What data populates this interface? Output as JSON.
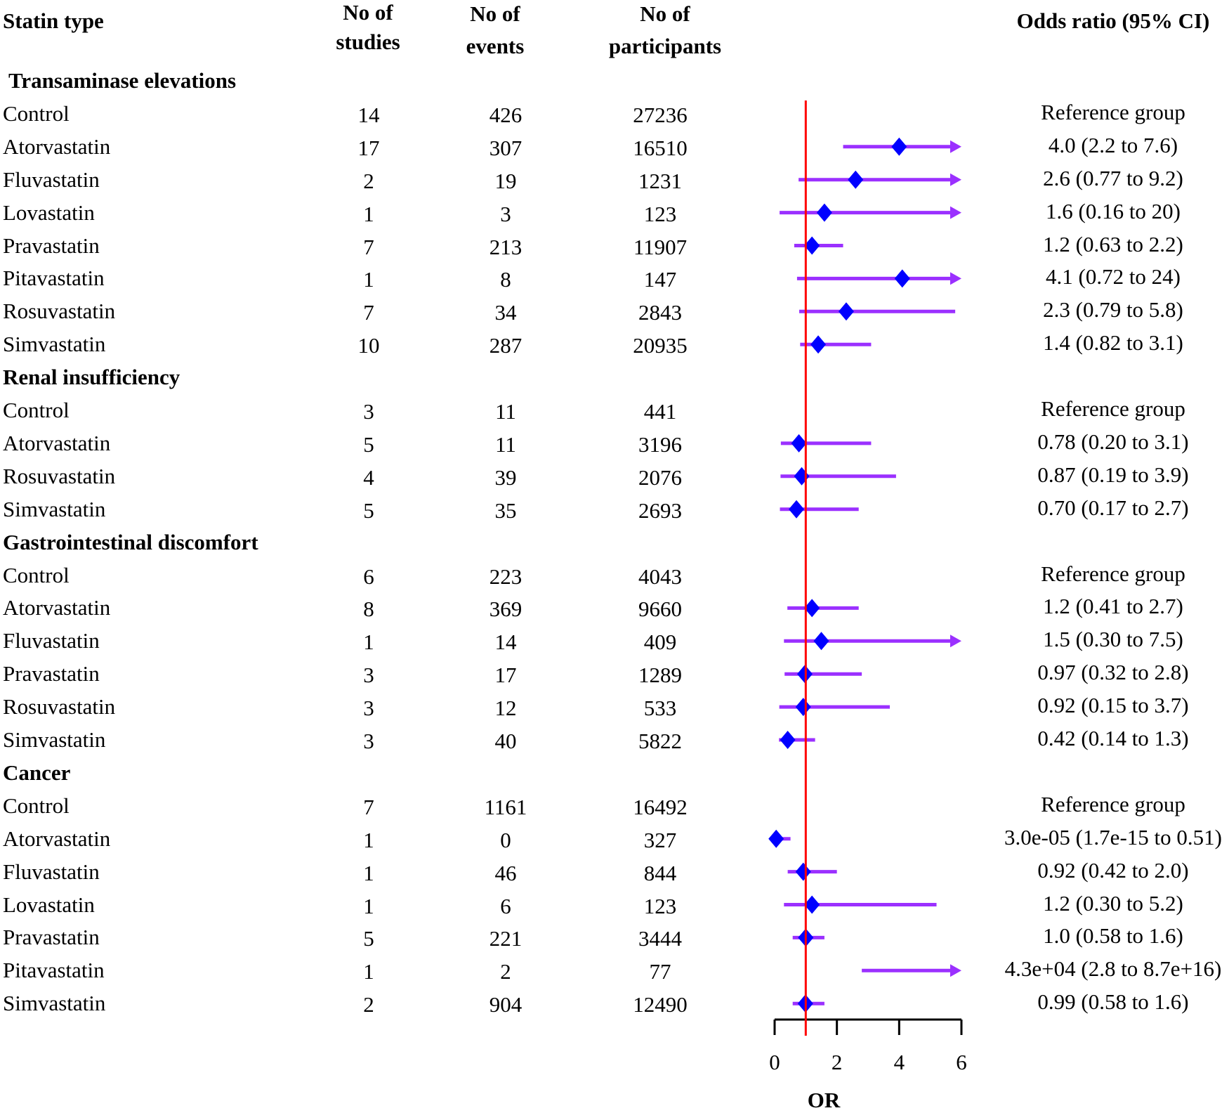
{
  "chart_data": {
    "type": "forest",
    "headers": {
      "statin_type": "Statin type",
      "studies": [
        "No of",
        "studies"
      ],
      "events": [
        "No of",
        "events"
      ],
      "participants": [
        "No of",
        "participants"
      ],
      "or_ci": "Odds ratio (95% CI)"
    },
    "xlabel": "OR",
    "xlim": [
      0,
      6
    ],
    "xticks": [
      "0",
      "2",
      "4",
      "6"
    ],
    "reference_line": 1,
    "colors": {
      "ci": "#9b30ff",
      "point": "#0000ff",
      "ref": "#ff0000",
      "axis": "#000000"
    },
    "sections": [
      {
        "title": "Transaminase elevations",
        "rows": [
          {
            "name": "Control",
            "studies": "14",
            "events": "426",
            "participants": "27236",
            "label": "Reference group"
          },
          {
            "name": "Atorvastatin",
            "studies": "17",
            "events": "307",
            "participants": "16510",
            "label": "4.0 (2.2 to 7.6)",
            "or": 4.0,
            "lo": 2.2,
            "hi": 7.6
          },
          {
            "name": "Fluvastatin",
            "studies": "2",
            "events": "19",
            "participants": "1231",
            "label": "2.6 (0.77 to 9.2)",
            "or": 2.6,
            "lo": 0.77,
            "hi": 9.2
          },
          {
            "name": "Lovastatin",
            "studies": "1",
            "events": "3",
            "participants": "123",
            "label": "1.6 (0.16 to 20)",
            "or": 1.6,
            "lo": 0.16,
            "hi": 20
          },
          {
            "name": "Pravastatin",
            "studies": "7",
            "events": "213",
            "participants": "11907",
            "label": "1.2 (0.63 to 2.2)",
            "or": 1.2,
            "lo": 0.63,
            "hi": 2.2
          },
          {
            "name": "Pitavastatin",
            "studies": "1",
            "events": "8",
            "participants": "147",
            "label": "4.1 (0.72 to 24)",
            "or": 4.1,
            "lo": 0.72,
            "hi": 24
          },
          {
            "name": "Rosuvastatin",
            "studies": "7",
            "events": "34",
            "participants": "2843",
            "label": "2.3 (0.79 to 5.8)",
            "or": 2.3,
            "lo": 0.79,
            "hi": 5.8
          },
          {
            "name": "Simvastatin",
            "studies": "10",
            "events": "287",
            "participants": "20935",
            "label": "1.4 (0.82 to 3.1)",
            "or": 1.4,
            "lo": 0.82,
            "hi": 3.1
          }
        ]
      },
      {
        "title": "Renal insufficiency",
        "rows": [
          {
            "name": "Control",
            "studies": "3",
            "events": "11",
            "participants": "441",
            "label": "Reference group"
          },
          {
            "name": "Atorvastatin",
            "studies": "5",
            "events": "11",
            "participants": "3196",
            "label": "0.78 (0.20 to 3.1)",
            "or": 0.78,
            "lo": 0.2,
            "hi": 3.1
          },
          {
            "name": "Rosuvastatin",
            "studies": "4",
            "events": "39",
            "participants": "2076",
            "label": "0.87 (0.19 to 3.9)",
            "or": 0.87,
            "lo": 0.19,
            "hi": 3.9
          },
          {
            "name": "Simvastatin",
            "studies": "5",
            "events": "35",
            "participants": "2693",
            "label": "0.70 (0.17 to 2.7)",
            "or": 0.7,
            "lo": 0.17,
            "hi": 2.7
          }
        ]
      },
      {
        "title": "Gastrointestinal discomfort",
        "rows": [
          {
            "name": "Control",
            "studies": "6",
            "events": "223",
            "participants": "4043",
            "label": "Reference group"
          },
          {
            "name": "Atorvastatin",
            "studies": "8",
            "events": "369",
            "participants": "9660",
            "label": "1.2 (0.41 to 2.7)",
            "or": 1.2,
            "lo": 0.41,
            "hi": 2.7
          },
          {
            "name": "Fluvastatin",
            "studies": "1",
            "events": "14",
            "participants": "409",
            "label": "1.5 (0.30 to 7.5)",
            "or": 1.5,
            "lo": 0.3,
            "hi": 7.5
          },
          {
            "name": "Pravastatin",
            "studies": "3",
            "events": "17",
            "participants": "1289",
            "label": "0.97 (0.32 to 2.8)",
            "or": 0.97,
            "lo": 0.32,
            "hi": 2.8
          },
          {
            "name": "Rosuvastatin",
            "studies": "3",
            "events": "12",
            "participants": "533",
            "label": "0.92 (0.15 to 3.7)",
            "or": 0.92,
            "lo": 0.15,
            "hi": 3.7
          },
          {
            "name": "Simvastatin",
            "studies": "3",
            "events": "40",
            "participants": "5822",
            "label": "0.42 (0.14 to 1.3)",
            "or": 0.42,
            "lo": 0.14,
            "hi": 1.3
          }
        ]
      },
      {
        "title": "Cancer",
        "rows": [
          {
            "name": "Control",
            "studies": "7",
            "events": "1161",
            "participants": "16492",
            "label": "Reference group"
          },
          {
            "name": "Atorvastatin",
            "studies": "1",
            "events": "0",
            "participants": "327",
            "label": "3.0e-05 (1.7e-15 to 0.51)",
            "or": 3e-05,
            "lo": 1.7e-15,
            "hi": 0.51
          },
          {
            "name": "Fluvastatin",
            "studies": "1",
            "events": "46",
            "participants": "844",
            "label": "0.92 (0.42 to 2.0)",
            "or": 0.92,
            "lo": 0.42,
            "hi": 2.0
          },
          {
            "name": "Lovastatin",
            "studies": "1",
            "events": "6",
            "participants": "123",
            "label": "1.2 (0.30 to 5.2)",
            "or": 1.2,
            "lo": 0.3,
            "hi": 5.2
          },
          {
            "name": "Pravastatin",
            "studies": "5",
            "events": "221",
            "participants": "3444",
            "label": "1.0 (0.58 to 1.6)",
            "or": 1.0,
            "lo": 0.58,
            "hi": 1.6
          },
          {
            "name": "Pitavastatin",
            "studies": "1",
            "events": "2",
            "participants": "77",
            "label": "4.3e+04 (2.8 to 8.7e+16)",
            "or": 43000,
            "lo": 2.8,
            "hi": 8.7e+16
          },
          {
            "name": "Simvastatin",
            "studies": "2",
            "events": "904",
            "participants": "12490",
            "label": "0.99 (0.58 to 1.6)",
            "or": 0.99,
            "lo": 0.58,
            "hi": 1.6
          }
        ]
      }
    ]
  }
}
